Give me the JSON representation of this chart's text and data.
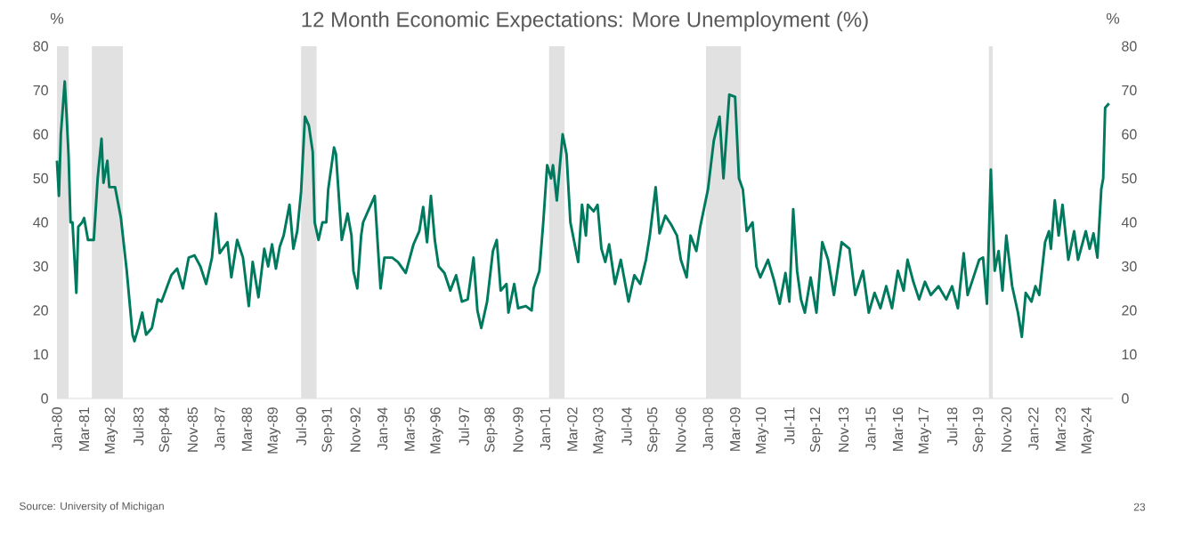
{
  "chart_data": {
    "type": "line",
    "title": "12 Month Economic Expectations: More Unemployment (%)",
    "ylabel": "%",
    "y2label": "%",
    "annotations": [
      "Source: University of Michigan",
      "23"
    ],
    "x": [
      "1980-01",
      "1980-02",
      "1980-03",
      "1980-05",
      "1980-06",
      "1980-07",
      "1980-08",
      "1980-09",
      "1980-11",
      "1980-12",
      "1981-02",
      "1981-03",
      "1981-05",
      "1981-08",
      "1981-10",
      "1981-12",
      "1982-01",
      "1982-03",
      "1982-04",
      "1982-07",
      "1982-10",
      "1982-11",
      "1983-01",
      "1983-04",
      "1983-05",
      "1983-07",
      "1983-09",
      "1983-11",
      "1984-02",
      "1984-05",
      "1984-07",
      "1984-12",
      "1985-03",
      "1985-06",
      "1985-09",
      "1985-12",
      "1986-03",
      "1986-06",
      "1986-09",
      "1986-11",
      "1987-01",
      "1987-05",
      "1987-07",
      "1987-10",
      "1988-01",
      "1988-04",
      "1988-06",
      "1988-09",
      "1988-12",
      "1989-02",
      "1989-04",
      "1989-06",
      "1989-08",
      "1989-10",
      "1990-01",
      "1990-03",
      "1990-05",
      "1990-07",
      "1990-09",
      "1990-11",
      "1991-01",
      "1991-02",
      "1991-04",
      "1991-06",
      "1991-08",
      "1991-09",
      "1991-12",
      "1992-01",
      "1992-03",
      "1992-04",
      "1992-07",
      "1992-09",
      "1992-10",
      "1992-12",
      "1993-02",
      "1993-03",
      "1993-06",
      "1993-09",
      "1993-12",
      "1994-02",
      "1994-06",
      "1994-09",
      "1995-01",
      "1995-05",
      "1995-08",
      "1995-10",
      "1995-12",
      "1996-02",
      "1996-04",
      "1996-06",
      "1996-09",
      "1996-12",
      "1997-03",
      "1997-06",
      "1997-09",
      "1997-12",
      "1998-02",
      "1998-04",
      "1998-07",
      "1998-10",
      "1998-12",
      "1999-02",
      "1999-05",
      "1999-06",
      "1999-09",
      "1999-11",
      "2000-03",
      "2000-06",
      "2000-07",
      "2000-10",
      "2000-12",
      "2001-02",
      "2001-04",
      "2001-05",
      "2001-07",
      "2001-10",
      "2001-12",
      "2002-02",
      "2002-04",
      "2002-06",
      "2002-08",
      "2002-10",
      "2002-11",
      "2003-02",
      "2003-04",
      "2003-06",
      "2003-08",
      "2003-10",
      "2004-01",
      "2004-04",
      "2004-08",
      "2004-11",
      "2005-02",
      "2005-05",
      "2005-07",
      "2005-10",
      "2005-12",
      "2006-03",
      "2006-06",
      "2006-09",
      "2006-11",
      "2007-02",
      "2007-04",
      "2007-07",
      "2007-09",
      "2008-01",
      "2008-04",
      "2008-07",
      "2008-09",
      "2008-12",
      "2009-03",
      "2009-05",
      "2009-07",
      "2009-09",
      "2009-12",
      "2010-02",
      "2010-04",
      "2010-08",
      "2010-11",
      "2011-02",
      "2011-05",
      "2011-07",
      "2011-09",
      "2011-11",
      "2012-01",
      "2012-03",
      "2012-06",
      "2012-09",
      "2012-12",
      "2013-03",
      "2013-06",
      "2013-10",
      "2014-02",
      "2014-05",
      "2014-09",
      "2014-12",
      "2015-03",
      "2015-06",
      "2015-09",
      "2015-12",
      "2016-03",
      "2016-06",
      "2016-08",
      "2016-11",
      "2017-02",
      "2017-05",
      "2017-08",
      "2017-12",
      "2018-04",
      "2018-07",
      "2018-10",
      "2019-01",
      "2019-03",
      "2019-06",
      "2019-09",
      "2019-11",
      "2020-01",
      "2020-03",
      "2020-05",
      "2020-07",
      "2020-09",
      "2020-11",
      "2021-02",
      "2021-05",
      "2021-07",
      "2021-09",
      "2021-12",
      "2022-02",
      "2022-04",
      "2022-07",
      "2022-09",
      "2022-10",
      "2022-12",
      "2023-02",
      "2023-04",
      "2023-07",
      "2023-10",
      "2023-12",
      "2024-04",
      "2024-06",
      "2024-08",
      "2024-10",
      "2024-12",
      "2025-01",
      "2025-02",
      "2025-04"
    ],
    "series": [
      {
        "color": "#007a5e",
        "values": [
          54,
          46,
          60,
          72,
          64,
          55,
          40,
          40,
          24,
          39,
          40,
          41,
          36,
          36,
          50,
          59,
          49,
          54,
          48,
          48,
          41,
          37,
          29,
          14.5,
          13,
          16,
          19.5,
          14.5,
          16,
          22.5,
          22,
          28,
          29.5,
          25,
          32,
          32.5,
          30,
          26,
          32,
          42,
          33,
          35.5,
          27.5,
          36,
          32,
          21,
          31,
          23,
          34,
          30,
          35,
          29.5,
          34.5,
          37,
          44,
          34,
          38,
          47,
          64,
          62,
          56,
          40,
          36,
          40,
          40,
          47.5,
          57,
          55.5,
          42.5,
          36,
          42,
          37,
          29,
          25,
          37,
          40,
          43,
          46,
          25,
          32,
          32,
          31,
          28.5,
          35,
          38,
          43.5,
          35.5,
          46,
          36,
          30,
          28.5,
          24.5,
          28,
          22,
          22.5,
          32,
          20,
          16,
          22,
          33.5,
          36,
          24.5,
          26,
          19.5,
          26,
          20.5,
          21,
          20,
          25,
          29,
          40,
          53,
          50,
          53,
          45,
          60,
          55.5,
          40,
          35.5,
          31,
          44,
          37,
          44,
          42.5,
          44,
          34,
          31,
          35,
          26,
          31.5,
          22,
          28,
          26,
          31.5,
          37,
          48,
          37.5,
          41.5,
          39.5,
          37,
          31.5,
          27.5,
          37,
          33.5,
          39,
          47.5,
          58.5,
          64,
          50,
          69,
          68.5,
          50,
          47.5,
          38,
          40,
          30,
          27.5,
          31.5,
          27,
          21.5,
          28.5,
          22,
          43,
          29,
          22.5,
          19.5,
          27.5,
          19.5,
          35.5,
          31.5,
          23.5,
          35.5,
          34,
          23.5,
          29,
          19.5,
          24,
          20.5,
          25.5,
          20.5,
          29,
          24.5,
          31.5,
          26.5,
          22.5,
          26.5,
          23.5,
          25.5,
          22.5,
          25.5,
          20.5,
          33,
          23.5,
          27.5,
          31.5,
          32,
          21.5,
          52,
          29,
          33.5,
          24.5,
          37,
          25.5,
          19.5,
          14,
          24,
          22,
          25.5,
          23.5,
          35.5,
          38,
          34,
          45,
          37,
          44,
          31.5,
          38,
          31.5,
          38,
          34,
          37.5,
          32,
          47.5,
          50,
          66,
          67
        ]
      }
    ],
    "xlim": [
      "1980-01",
      "2025-06"
    ],
    "xticks": [
      {
        "value": "1980-01",
        "label": "Jan-80"
      },
      {
        "value": "1981-03",
        "label": "Mar-81"
      },
      {
        "value": "1982-05",
        "label": "May-82"
      },
      {
        "value": "1983-07",
        "label": "Jul-83"
      },
      {
        "value": "1984-09",
        "label": "Sep-84"
      },
      {
        "value": "1985-11",
        "label": "Nov-85"
      },
      {
        "value": "1987-01",
        "label": "Jan-87"
      },
      {
        "value": "1988-03",
        "label": "Mar-88"
      },
      {
        "value": "1989-05",
        "label": "May-89"
      },
      {
        "value": "1990-07",
        "label": "Jul-90"
      },
      {
        "value": "1991-09",
        "label": "Sep-91"
      },
      {
        "value": "1992-11",
        "label": "Nov-92"
      },
      {
        "value": "1994-01",
        "label": "Jan-94"
      },
      {
        "value": "1995-03",
        "label": "Mar-95"
      },
      {
        "value": "1996-05",
        "label": "May-96"
      },
      {
        "value": "1997-07",
        "label": "Jul-97"
      },
      {
        "value": "1998-09",
        "label": "Sep-98"
      },
      {
        "value": "1999-11",
        "label": "Nov-99"
      },
      {
        "value": "2001-01",
        "label": "Jan-01"
      },
      {
        "value": "2002-03",
        "label": "Mar-02"
      },
      {
        "value": "2003-05",
        "label": "May-03"
      },
      {
        "value": "2004-07",
        "label": "Jul-04"
      },
      {
        "value": "2005-09",
        "label": "Sep-05"
      },
      {
        "value": "2006-11",
        "label": "Nov-06"
      },
      {
        "value": "2008-01",
        "label": "Jan-08"
      },
      {
        "value": "2009-03",
        "label": "Mar-09"
      },
      {
        "value": "2010-05",
        "label": "May-10"
      },
      {
        "value": "2011-07",
        "label": "Jul-11"
      },
      {
        "value": "2012-09",
        "label": "Sep-12"
      },
      {
        "value": "2013-11",
        "label": "Nov-13"
      },
      {
        "value": "2015-01",
        "label": "Jan-15"
      },
      {
        "value": "2016-03",
        "label": "Mar-16"
      },
      {
        "value": "2017-05",
        "label": "May-17"
      },
      {
        "value": "2018-07",
        "label": "Jul-18"
      },
      {
        "value": "2019-09",
        "label": "Sep-19"
      },
      {
        "value": "2020-11",
        "label": "Nov-20"
      },
      {
        "value": "2022-01",
        "label": "Jan-22"
      },
      {
        "value": "2023-03",
        "label": "Mar-23"
      },
      {
        "value": "2024-05",
        "label": "May-24"
      }
    ],
    "ylim": [
      0,
      80
    ],
    "yticks": [
      0,
      10,
      20,
      30,
      40,
      50,
      60,
      70,
      80
    ],
    "y2lim": [
      0,
      80
    ],
    "y2ticks": [
      0,
      10,
      20,
      30,
      40,
      50,
      60,
      70,
      80
    ],
    "bands": [
      {
        "axis": "x",
        "from": "1980-01",
        "to": "1980-07",
        "color": "#e1e1e1"
      },
      {
        "axis": "x",
        "from": "1981-07",
        "to": "1982-11",
        "color": "#e1e1e1"
      },
      {
        "axis": "x",
        "from": "1990-07",
        "to": "1991-03",
        "color": "#e1e1e1"
      },
      {
        "axis": "x",
        "from": "2001-03",
        "to": "2001-11",
        "color": "#e1e1e1"
      },
      {
        "axis": "x",
        "from": "2007-12",
        "to": "2009-06",
        "color": "#e1e1e1"
      },
      {
        "axis": "x",
        "from": "2020-02",
        "to": "2020-04",
        "color": "#e1e1e1"
      }
    ]
  }
}
